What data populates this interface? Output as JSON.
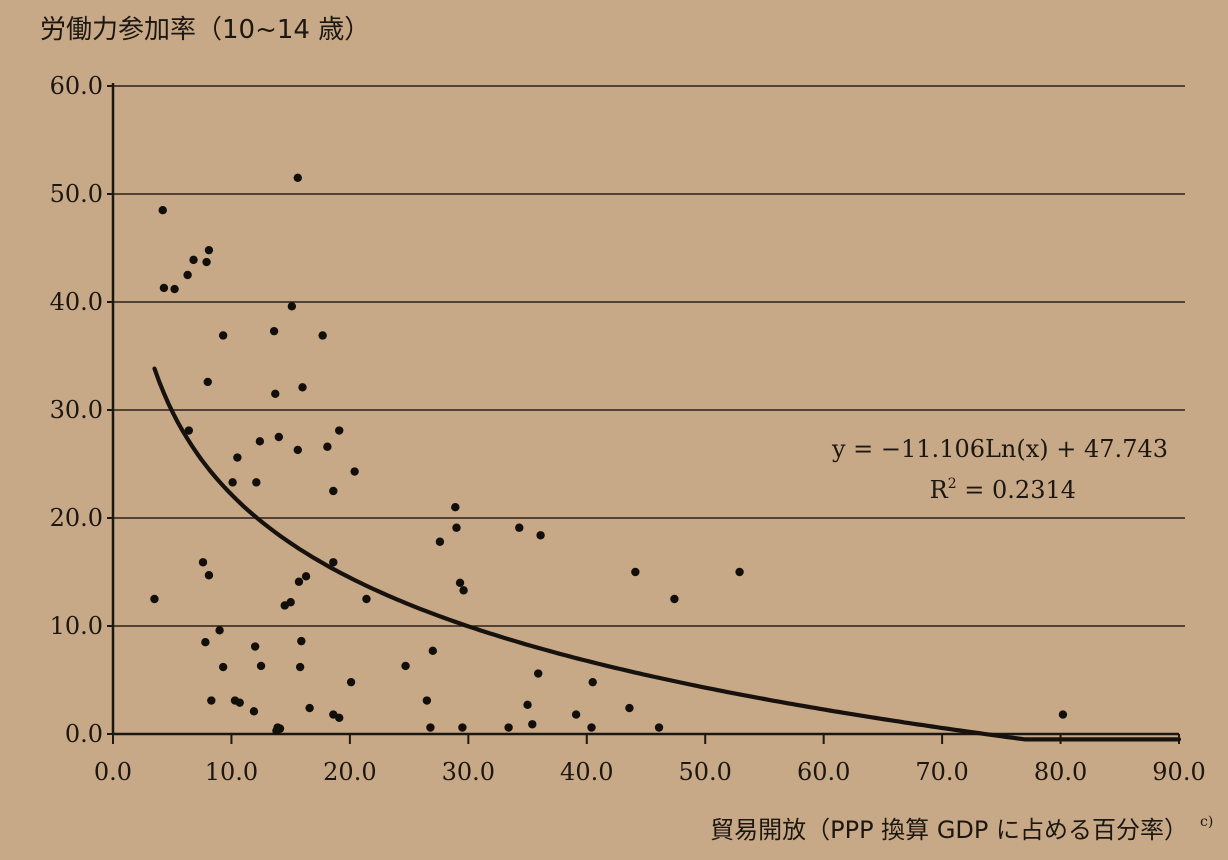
{
  "chart_data": {
    "type": "scatter",
    "title": "労働力参加率（10~14 歳）",
    "xlabel": "貿易開放（PPP 換算 GDP に占める百分率）",
    "xlabel_note": "c)",
    "xlim": [
      0,
      90
    ],
    "ylim": [
      0,
      60
    ],
    "x_ticks": [
      "0.0",
      "10.0",
      "20.0",
      "30.0",
      "40.0",
      "50.0",
      "60.0",
      "70.0",
      "80.0",
      "90.0"
    ],
    "y_ticks": [
      "0.0",
      "10.0",
      "20.0",
      "30.0",
      "40.0",
      "50.0",
      "60.0"
    ],
    "grid": "horizontal",
    "trendline": {
      "type": "logarithmic",
      "a": -11.106,
      "b": 47.743,
      "x_from": 3.5,
      "x_to": 90,
      "equation": "y = −11.106Ln(x) + 47.743",
      "r_squared_label": "R",
      "r_squared_sup": "2",
      "r_squared_value": " = 0.2314"
    },
    "points": [
      [
        4.2,
        48.5
      ],
      [
        4.3,
        41.3
      ],
      [
        5.2,
        41.2
      ],
      [
        6.3,
        42.5
      ],
      [
        6.8,
        43.9
      ],
      [
        7.9,
        43.7
      ],
      [
        8.1,
        44.8
      ],
      [
        9.3,
        36.9
      ],
      [
        8.0,
        32.6
      ],
      [
        6.4,
        28.1
      ],
      [
        3.5,
        12.5
      ],
      [
        7.6,
        15.9
      ],
      [
        8.1,
        14.7
      ],
      [
        7.8,
        8.5
      ],
      [
        9.0,
        9.6
      ],
      [
        9.3,
        6.2
      ],
      [
        8.3,
        3.1
      ],
      [
        10.1,
        23.3
      ],
      [
        10.5,
        25.6
      ],
      [
        12.1,
        23.3
      ],
      [
        12.4,
        27.1
      ],
      [
        10.3,
        3.1
      ],
      [
        10.7,
        2.9
      ],
      [
        12.0,
        8.1
      ],
      [
        12.5,
        6.3
      ],
      [
        11.9,
        2.1
      ],
      [
        13.6,
        37.3
      ],
      [
        15.6,
        51.5
      ],
      [
        15.1,
        39.6
      ],
      [
        17.7,
        36.9
      ],
      [
        13.7,
        31.5
      ],
      [
        16.0,
        32.1
      ],
      [
        14.0,
        27.5
      ],
      [
        15.6,
        26.3
      ],
      [
        18.1,
        26.6
      ],
      [
        19.1,
        28.1
      ],
      [
        18.6,
        22.5
      ],
      [
        20.4,
        24.3
      ],
      [
        14.5,
        11.9
      ],
      [
        15.0,
        12.2
      ],
      [
        15.7,
        14.1
      ],
      [
        16.3,
        14.6
      ],
      [
        18.6,
        15.9
      ],
      [
        15.9,
        8.6
      ],
      [
        15.8,
        6.2
      ],
      [
        16.6,
        2.4
      ],
      [
        18.6,
        1.8
      ],
      [
        19.1,
        1.5
      ],
      [
        13.9,
        0.6
      ],
      [
        14.1,
        0.5
      ],
      [
        13.8,
        0.3
      ],
      [
        20.1,
        4.8
      ],
      [
        21.4,
        12.5
      ],
      [
        24.7,
        6.3
      ],
      [
        26.5,
        3.1
      ],
      [
        27.0,
        7.7
      ],
      [
        26.8,
        0.6
      ],
      [
        27.6,
        17.8
      ],
      [
        28.9,
        21.0
      ],
      [
        29.0,
        19.1
      ],
      [
        29.3,
        14.0
      ],
      [
        29.6,
        13.3
      ],
      [
        29.5,
        0.6
      ],
      [
        33.4,
        0.6
      ],
      [
        34.3,
        19.1
      ],
      [
        35.0,
        2.7
      ],
      [
        35.4,
        0.9
      ],
      [
        35.9,
        5.6
      ],
      [
        36.1,
        18.4
      ],
      [
        39.1,
        1.8
      ],
      [
        40.4,
        0.6
      ],
      [
        40.5,
        4.8
      ],
      [
        43.6,
        2.4
      ],
      [
        44.1,
        15.0
      ],
      [
        46.1,
        0.6
      ],
      [
        47.4,
        12.5
      ],
      [
        52.9,
        15.0
      ],
      [
        80.2,
        1.8
      ]
    ]
  }
}
